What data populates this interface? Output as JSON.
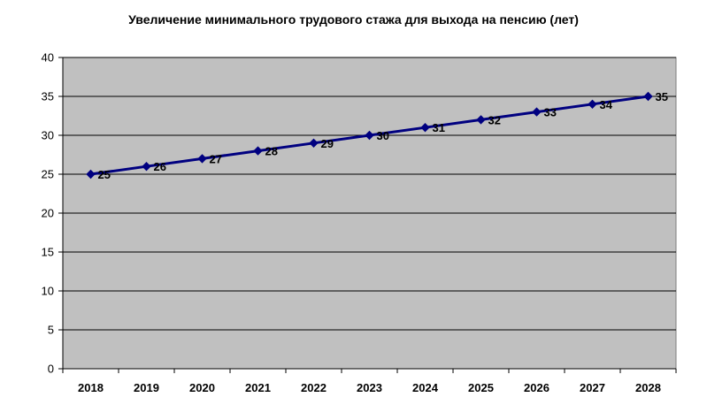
{
  "chart_data": {
    "type": "line",
    "title": "Увеличение минимального трудового стажа для выхода на пенсию (лет)",
    "xlabel": "",
    "ylabel": "",
    "categories": [
      "2018",
      "2019",
      "2020",
      "2021",
      "2022",
      "2023",
      "2024",
      "2025",
      "2026",
      "2027",
      "2028"
    ],
    "series": [
      {
        "values": [
          25,
          26,
          27,
          28,
          29,
          30,
          31,
          32,
          33,
          34,
          35
        ]
      }
    ],
    "ylim": [
      0,
      40
    ],
    "yticks": [
      0,
      5,
      10,
      15,
      20,
      25,
      30,
      35,
      40
    ],
    "grid": true,
    "legend": "none",
    "data_labels": true,
    "colors": {
      "plot_background": "#c0c0c0",
      "line": "#000080",
      "marker": "#000080",
      "gridline": "#000000"
    }
  }
}
